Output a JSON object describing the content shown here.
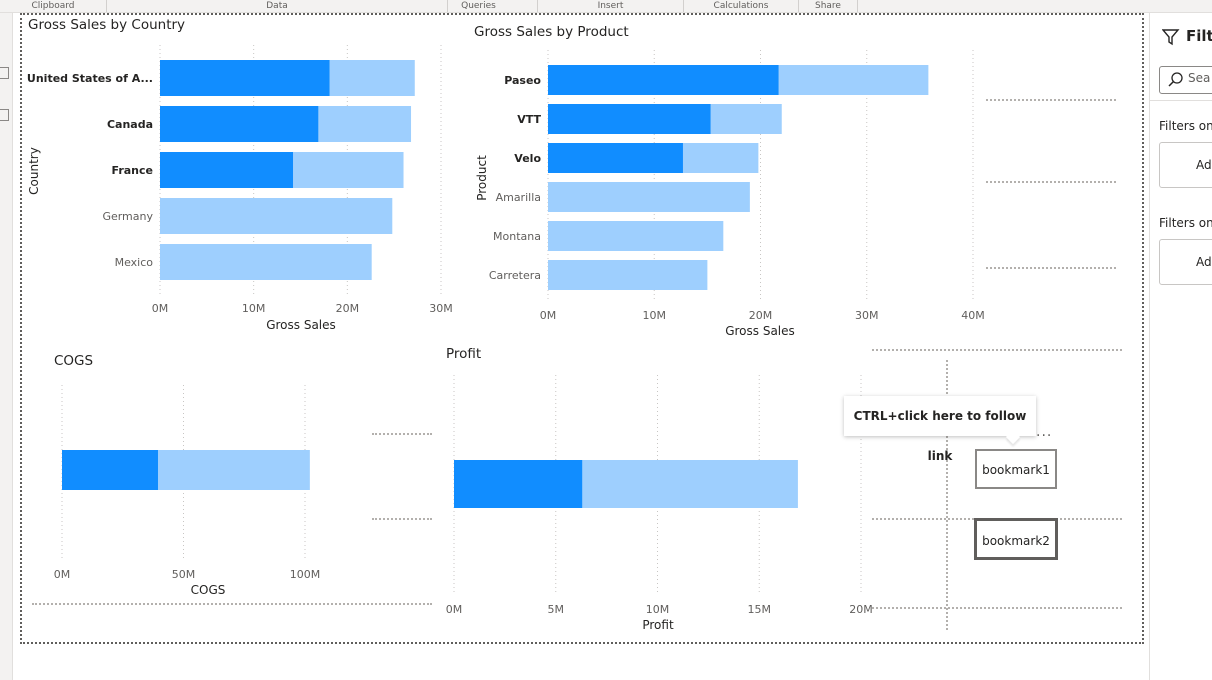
{
  "ribbon": {
    "groups": [
      "Clipboard",
      "Data",
      "Queries",
      "Insert",
      "Calculations",
      "Share"
    ]
  },
  "colors": {
    "selected": "#118dff",
    "base": "#9ecffe",
    "accent_border": "#605e5c"
  },
  "visuals": {
    "sales_by_country": {
      "title": "Gross Sales by Country",
      "chart_data": {
        "type": "bar",
        "orientation": "horizontal",
        "title": "Gross Sales by Country",
        "xlabel": "Gross Sales",
        "ylabel": "Country",
        "categories": [
          "United States of A...",
          "Canada",
          "France",
          "Germany",
          "Mexico"
        ],
        "highlighted_categories": [
          "United States of A...",
          "Canada",
          "France"
        ],
        "series": [
          {
            "values": [
              27.2,
              26.8,
              26.0,
              24.8,
              22.6
            ]
          },
          {
            "values": [
              18.1,
              16.9,
              14.2,
              0,
              0
            ]
          }
        ],
        "xlim": [
          0,
          30
        ],
        "xticks": [
          "0M",
          "10M",
          "20M",
          "30M"
        ]
      }
    },
    "sales_by_product": {
      "title": "Gross Sales by Product",
      "chart_data": {
        "type": "bar",
        "orientation": "horizontal",
        "title": "Gross Sales by Product",
        "xlabel": "Gross Sales",
        "ylabel": "Product",
        "categories": [
          "Paseo",
          "VTT",
          "Velo",
          "Amarilla",
          "Montana",
          "Carretera"
        ],
        "highlighted_categories": [
          "Paseo",
          "VTT",
          "Velo"
        ],
        "series": [
          {
            "values": [
              35.8,
              22.0,
              19.8,
              19.0,
              16.5,
              15.0
            ]
          },
          {
            "values": [
              21.7,
              15.3,
              12.7,
              0,
              0,
              0
            ]
          }
        ],
        "xlim": [
          0,
          40
        ],
        "xticks": [
          "0M",
          "10M",
          "20M",
          "30M",
          "40M"
        ]
      }
    },
    "cogs": {
      "title": "COGS",
      "chart_data": {
        "type": "bar",
        "orientation": "horizontal",
        "title": "COGS",
        "xlabel": "COGS",
        "categories": [
          ""
        ],
        "series": [
          {
            "values": [
              102
            ]
          },
          {
            "values": [
              39.5
            ]
          }
        ],
        "xlim": [
          0,
          100
        ],
        "xticks": [
          "0M",
          "50M",
          "100M"
        ]
      }
    },
    "profit": {
      "title": "Profit",
      "chart_data": {
        "type": "bar",
        "orientation": "horizontal",
        "title": "Profit",
        "xlabel": "Profit",
        "categories": [
          ""
        ],
        "series": [
          {
            "values": [
              16.9
            ]
          },
          {
            "values": [
              6.3
            ]
          }
        ],
        "xlim": [
          0,
          20
        ],
        "xticks": [
          "0M",
          "5M",
          "10M",
          "15M",
          "20M"
        ]
      }
    }
  },
  "tooltip": {
    "text": "CTRL+click here to follow link"
  },
  "more_options": "...",
  "bookmarks": [
    {
      "label": "bookmark1"
    },
    {
      "label": "bookmark2"
    }
  ],
  "filters_pane": {
    "title": "Filte",
    "search_placeholder": "Sea",
    "sections": [
      {
        "label": "Filters on t",
        "add_label": "Ado"
      },
      {
        "label": "Filters on a",
        "add_label": "Ado"
      }
    ]
  }
}
